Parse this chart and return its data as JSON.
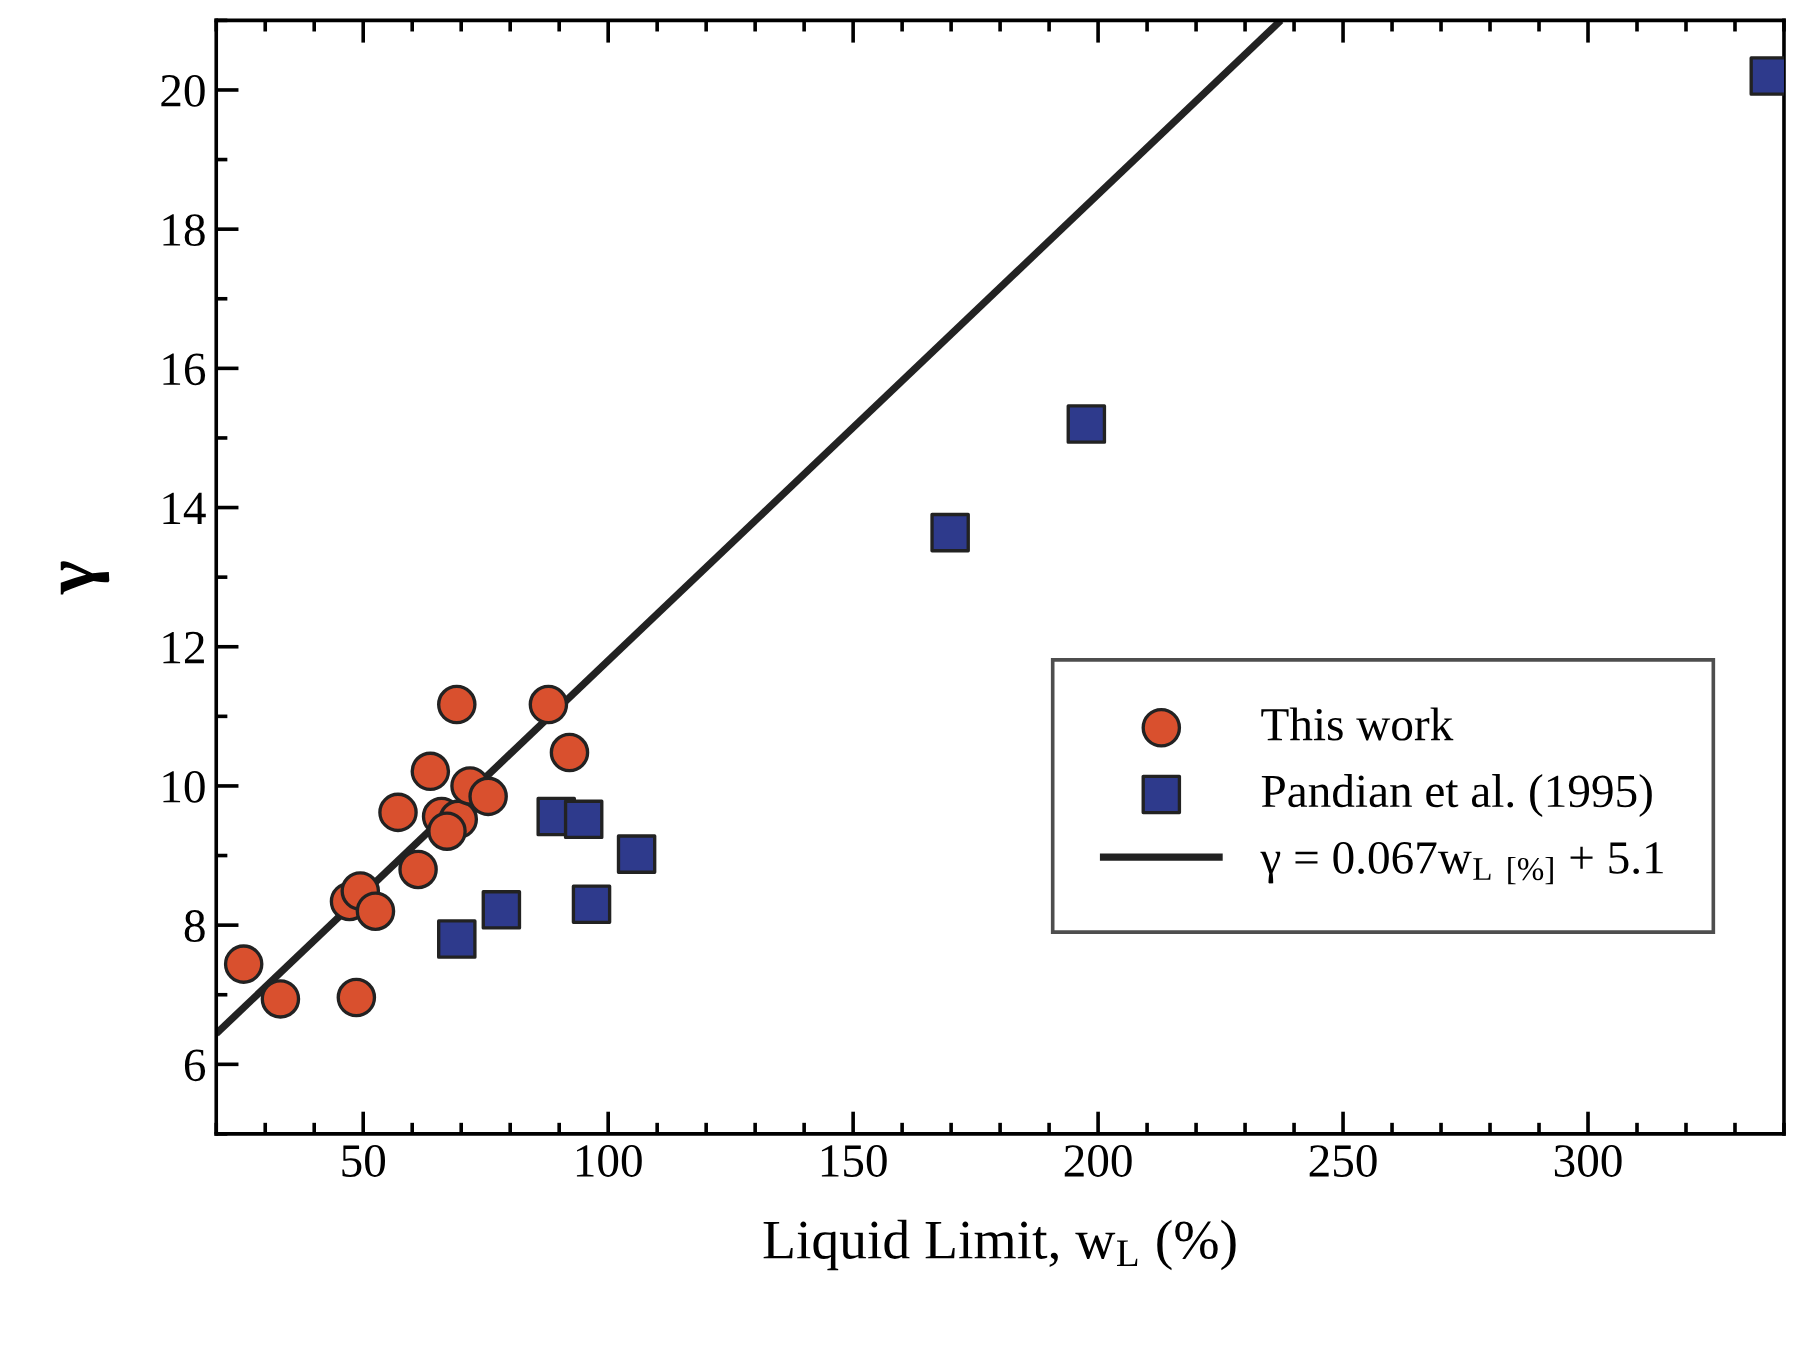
{
  "chart_data": {
    "type": "scatter",
    "xlabel": "Liquid Limit, w$_{L}$ (%)",
    "ylabel": "γ",
    "xlim": [
      20,
      340
    ],
    "xticks": [
      50,
      100,
      150,
      200,
      250,
      300
    ],
    "ylim": [
      5,
      21
    ],
    "yticks": [
      6,
      8,
      10,
      12,
      14,
      16,
      18,
      20
    ],
    "legend": "bottom right",
    "grid": false,
    "series": [
      {
        "name": "This work",
        "marker": "circle",
        "color": "#d9502e",
        "x": [
          25.6,
          33.1,
          48.6,
          47.2,
          49.4,
          52.5,
          61.2,
          57.1,
          63.7,
          66.0,
          69.4,
          67.1,
          71.8,
          75.5,
          69.1,
          87.8,
          92.1
        ],
        "values": [
          7.44,
          6.94,
          6.96,
          8.34,
          8.49,
          8.2,
          8.8,
          9.62,
          10.21,
          9.56,
          9.52,
          9.35,
          10.0,
          9.85,
          11.17,
          11.17,
          10.48
        ]
      },
      {
        "name": "Pandian et al. (1995)",
        "marker": "square",
        "color": "#2e3a8c",
        "x": [
          69.1,
          78.2,
          89.4,
          95.0,
          96.6,
          105.8,
          169.8,
          197.6,
          337
        ],
        "values": [
          7.8,
          8.22,
          9.56,
          9.52,
          8.3,
          9.02,
          13.64,
          15.2,
          20.2
        ]
      },
      {
        "name": "γ = 0.067w$_{L [%]}$ + 5.1",
        "type": "line",
        "line_style": "solid",
        "color": "#222222",
        "x": [
          20,
          237.3
        ],
        "values": [
          6.44,
          21
        ]
      }
    ]
  }
}
